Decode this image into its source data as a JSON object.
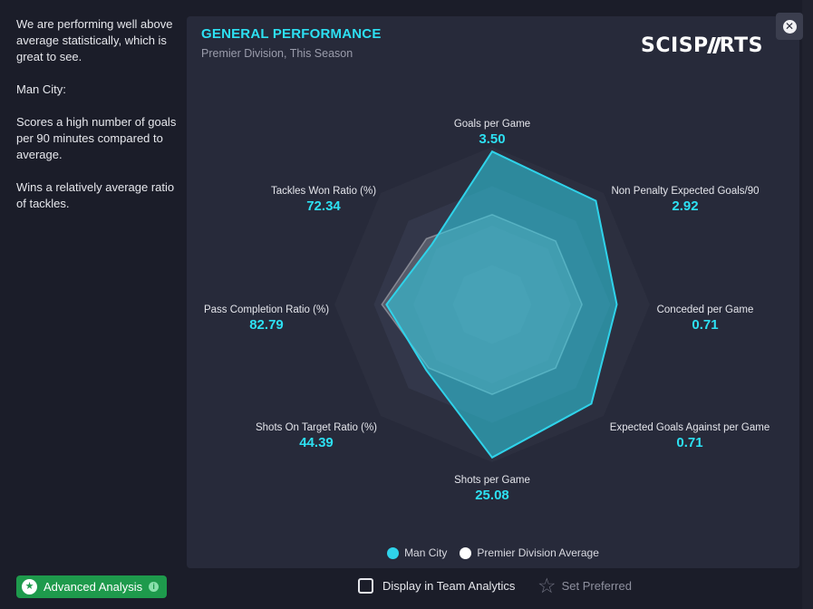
{
  "description": {
    "paragraphs": [
      "We are performing well above average statistically, which is great to see.",
      "Man City:",
      "Scores a high number of goals per 90 minutes compared to average.",
      "Wins a relatively average ratio of tackles."
    ]
  },
  "card": {
    "title": "GENERAL PERFORMANCE",
    "subtitle": "Premier Division, This Season",
    "logo": "SCISPORTS",
    "close_icon": "close-circle-icon"
  },
  "chart_data": {
    "type": "radar",
    "title": "GENERAL PERFORMANCE",
    "subtitle": "Premier Division, This Season",
    "axes": [
      {
        "label": "Goals per Game",
        "value": "3.50"
      },
      {
        "label": "Non Penalty Expected Goals/90",
        "value": "2.92"
      },
      {
        "label": "Conceded per Game",
        "value": "0.71"
      },
      {
        "label": "Expected Goals Against per Game",
        "value": "0.71"
      },
      {
        "label": "Shots per Game",
        "value": "25.08"
      },
      {
        "label": "Shots On Target Ratio (%)",
        "value": "44.39"
      },
      {
        "label": "Pass Completion Ratio (%)",
        "value": "82.79"
      },
      {
        "label": "Tackles Won Ratio (%)",
        "value": "72.34"
      }
    ],
    "rings": 4,
    "series": [
      {
        "name": "Man City",
        "color": "#2fd3ea",
        "fraction": [
          0.97,
          0.93,
          0.79,
          0.89,
          0.97,
          0.59,
          0.67,
          0.54
        ]
      },
      {
        "name": "Premier Division Average",
        "color": "#ffffff",
        "fraction": [
          0.57,
          0.57,
          0.57,
          0.57,
          0.57,
          0.57,
          0.7,
          0.59
        ]
      }
    ],
    "legend_position": "bottom-center"
  },
  "legend": [
    {
      "label": "Man City",
      "color": "#2fd3ea"
    },
    {
      "label": "Premier Division Average",
      "color": "#ffffff"
    }
  ],
  "footer": {
    "advanced_label": "Advanced Analysis",
    "display_label": "Display in Team Analytics",
    "preferred_label": "Set Preferred",
    "advanced_icon": "star-circle-icon",
    "info_icon": "info-icon",
    "preferred_icon": "star-outline-icon"
  }
}
